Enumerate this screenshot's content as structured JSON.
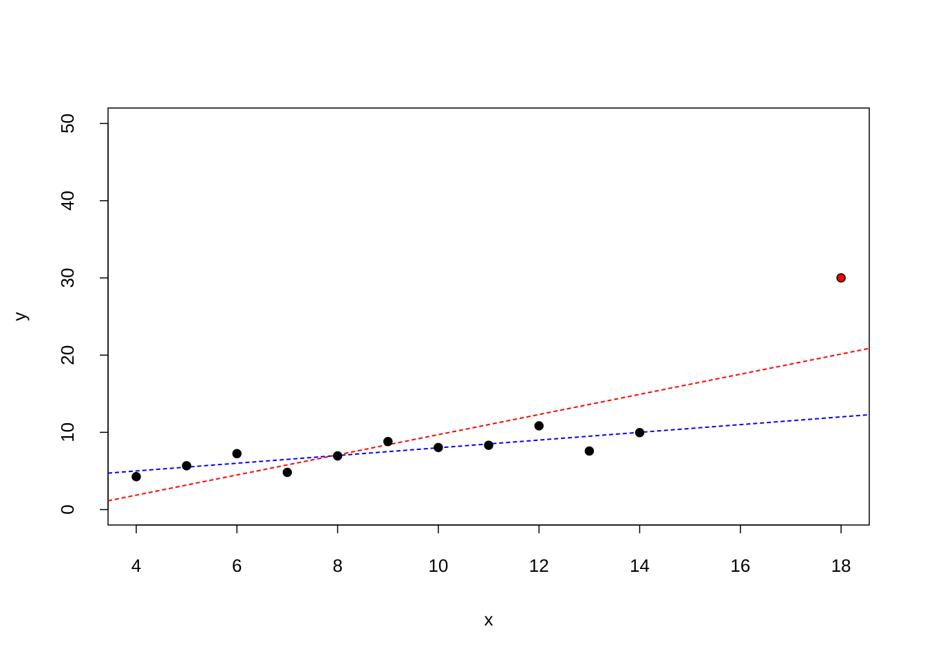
{
  "chart_data": {
    "type": "scatter",
    "x_label": "x",
    "y_label": "y",
    "x": [
      4,
      5,
      6,
      7,
      8,
      9,
      10,
      11,
      12,
      13,
      14,
      18
    ],
    "values": [
      4.26,
      5.68,
      7.24,
      4.82,
      6.95,
      8.81,
      8.04,
      8.33,
      10.84,
      7.58,
      9.96,
      30
    ],
    "colors": [
      "#000000",
      "#000000",
      "#000000",
      "#000000",
      "#000000",
      "#000000",
      "#000000",
      "#000000",
      "#000000",
      "#000000",
      "#000000",
      "#ff0000"
    ],
    "lines": [
      {
        "color": "#0000ff",
        "intercept": 3.0,
        "slope": 0.5
      },
      {
        "color": "#ff0000",
        "intercept": -3.35,
        "slope": 1.305
      }
    ],
    "xlim": [
      3.44,
      18.56
    ],
    "ylim": [
      -2,
      52
    ],
    "xticks": [
      4,
      6,
      8,
      10,
      12,
      14,
      16,
      18
    ],
    "yticks": [
      0,
      10,
      20,
      30,
      40,
      50
    ]
  }
}
